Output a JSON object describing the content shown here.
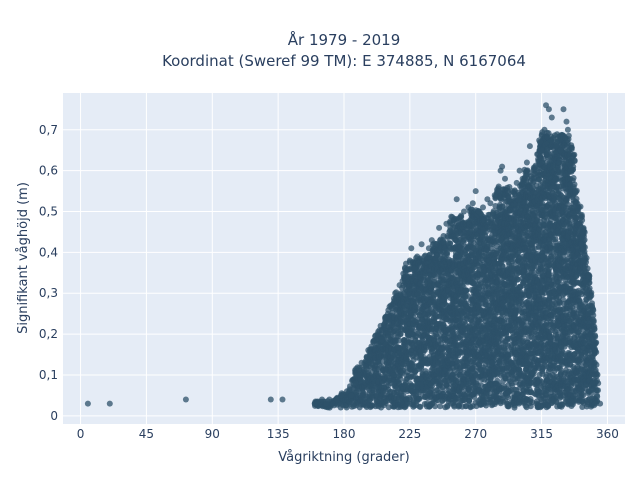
{
  "chart_data": {
    "type": "scatter",
    "title": "År 1979 - 2019",
    "subtitle": "Koordinat (Sweref 99 TM): E 374885, N 6167064",
    "xlabel": "Vågriktning (grader)",
    "ylabel": "Signifikant våghöjd (m)",
    "xlim": [
      -12,
      372
    ],
    "ylim": [
      -0.02,
      0.79
    ],
    "x_ticks": [
      0,
      45,
      90,
      135,
      180,
      225,
      270,
      315,
      360
    ],
    "x_tick_labels": [
      "0",
      "45",
      "90",
      "135",
      "180",
      "225",
      "270",
      "315",
      "360"
    ],
    "y_ticks": [
      0,
      0.1,
      0.2,
      0.3,
      0.4,
      0.5,
      0.6,
      0.7
    ],
    "y_tick_labels": [
      "0",
      "0,1",
      "0,2",
      "0,3",
      "0,4",
      "0,5",
      "0,6",
      "0,7"
    ],
    "grid": true,
    "marker_color": "#2e5269",
    "plot_bg": "#e5ecf6",
    "series": [
      {
        "points": [
          [
            5,
            0.03
          ],
          [
            20,
            0.03
          ],
          [
            72,
            0.04
          ],
          [
            130,
            0.04
          ],
          [
            138,
            0.04
          ],
          [
            160,
            0.03
          ],
          [
            162,
            0.035
          ],
          [
            165,
            0.04
          ],
          [
            168,
            0.03
          ],
          [
            170,
            0.04
          ],
          [
            175,
            0.04
          ],
          [
            178,
            0.05
          ],
          [
            182,
            0.06
          ],
          [
            185,
            0.05
          ],
          [
            188,
            0.08
          ],
          [
            190,
            0.1
          ],
          [
            192,
            0.13
          ],
          [
            195,
            0.12
          ],
          [
            198,
            0.15
          ],
          [
            200,
            0.18
          ],
          [
            203,
            0.2
          ],
          [
            205,
            0.22
          ],
          [
            208,
            0.24
          ],
          [
            210,
            0.25
          ],
          [
            212,
            0.27
          ],
          [
            215,
            0.3
          ],
          [
            218,
            0.32
          ],
          [
            220,
            0.33
          ],
          [
            222,
            0.35
          ],
          [
            225,
            0.38
          ],
          [
            226,
            0.41
          ],
          [
            228,
            0.36
          ],
          [
            230,
            0.39
          ],
          [
            233,
            0.42
          ],
          [
            235,
            0.39
          ],
          [
            238,
            0.41
          ],
          [
            240,
            0.43
          ],
          [
            243,
            0.42
          ],
          [
            245,
            0.46
          ],
          [
            248,
            0.44
          ],
          [
            250,
            0.47
          ],
          [
            252,
            0.45
          ],
          [
            255,
            0.48
          ],
          [
            257,
            0.53
          ],
          [
            260,
            0.49
          ],
          [
            262,
            0.5
          ],
          [
            265,
            0.51
          ],
          [
            268,
            0.52
          ],
          [
            270,
            0.55
          ],
          [
            272,
            0.5
          ],
          [
            275,
            0.51
          ],
          [
            278,
            0.53
          ],
          [
            280,
            0.52
          ],
          [
            283,
            0.54
          ],
          [
            285,
            0.55
          ],
          [
            287,
            0.6
          ],
          [
            288,
            0.61
          ],
          [
            290,
            0.58
          ],
          [
            293,
            0.56
          ],
          [
            295,
            0.55
          ],
          [
            298,
            0.57
          ],
          [
            300,
            0.6
          ],
          [
            302,
            0.58
          ],
          [
            305,
            0.62
          ],
          [
            307,
            0.66
          ],
          [
            310,
            0.6
          ],
          [
            312,
            0.64
          ],
          [
            314,
            0.67
          ],
          [
            315,
            0.65
          ],
          [
            317,
            0.7
          ],
          [
            318,
            0.76
          ],
          [
            320,
            0.75
          ],
          [
            322,
            0.73
          ],
          [
            323,
            0.68
          ],
          [
            325,
            0.66
          ],
          [
            327,
            0.62
          ],
          [
            328,
            0.65
          ],
          [
            330,
            0.75
          ],
          [
            332,
            0.72
          ],
          [
            333,
            0.7
          ],
          [
            335,
            0.6
          ],
          [
            337,
            0.56
          ],
          [
            338,
            0.55
          ],
          [
            340,
            0.5
          ],
          [
            342,
            0.42
          ],
          [
            344,
            0.38
          ],
          [
            345,
            0.33
          ],
          [
            346,
            0.3
          ],
          [
            347,
            0.25
          ],
          [
            348,
            0.2
          ],
          [
            349,
            0.12
          ],
          [
            350,
            0.08
          ],
          [
            352,
            0.03
          ],
          [
            355,
            0.03
          ]
        ]
      }
    ]
  }
}
